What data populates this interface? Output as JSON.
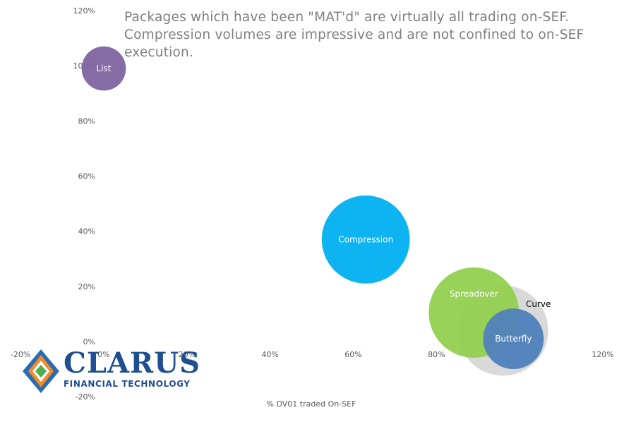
{
  "annotation": "Packages which have been \"MAT'd\" are virtually all trading  on-SEF. Compression volumes are impressive and are not confined to on-SEF execution.",
  "logo": {
    "name": "CLARUS",
    "tagline": "FINANCIAL TECHNOLOGY"
  },
  "chart_data": {
    "type": "scatter",
    "xlabel": "% DV01 traded On-SEF",
    "ylabel": "",
    "xlim": [
      -0.2,
      1.2
    ],
    "ylim": [
      -0.2,
      1.2
    ],
    "x_ticks": [
      "-20%",
      "0%",
      "20%",
      "40%",
      "60%",
      "80%",
      "100%",
      "120%"
    ],
    "y_ticks": [
      "-20%",
      "0%",
      "20%",
      "40%",
      "60%",
      "80%",
      "100%",
      "120%"
    ],
    "grid": false,
    "legend": "none",
    "series": [
      {
        "label": "Curve",
        "x": 0.96,
        "y": 0.04,
        "size": 1.0,
        "color": "#d9d9d9",
        "label_color": "#000000",
        "label_position": "right"
      },
      {
        "label": "Spreadover",
        "x": 0.89,
        "y": 0.105,
        "size": 1.0,
        "color": "#92d050",
        "label_color": "#ffffff",
        "label_position": "center"
      },
      {
        "label": "Compression",
        "x": 0.63,
        "y": 0.37,
        "size": 0.95,
        "color": "#00b0f0",
        "label_color": "#ffffff",
        "label_position": "center"
      },
      {
        "label": "Butterfly",
        "x": 0.985,
        "y": 0.01,
        "size": 0.45,
        "color": "#4f81bd",
        "label_color": "#ffffff",
        "label_position": "center"
      },
      {
        "label": "List",
        "x": 0.0,
        "y": 0.99,
        "size": 0.24,
        "color": "#8064a2",
        "label_color": "#ffffff",
        "label_position": "center"
      }
    ]
  }
}
